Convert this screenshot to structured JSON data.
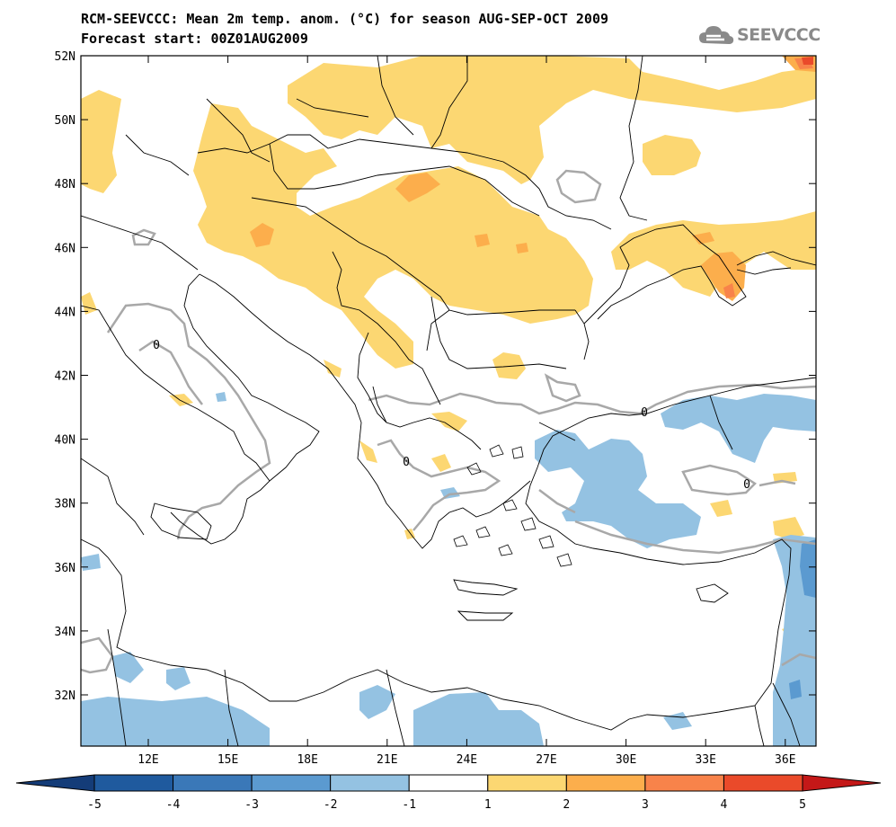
{
  "title_line1": "RCM-SEEVCCC: Mean 2m temp. anom. (°C) for season AUG-SEP-OCT 2009",
  "title_line2": "Forecast start: 00Z01AUG2009",
  "logo_text": "SEEVCCC",
  "lat_labels": [
    "52N",
    "50N",
    "48N",
    "46N",
    "44N",
    "42N",
    "40N",
    "38N",
    "36N",
    "34N",
    "32N"
  ],
  "lon_labels": [
    "12E",
    "15E",
    "18E",
    "21E",
    "24E",
    "27E",
    "30E",
    "33E",
    "36E"
  ],
  "contour_label": "0",
  "colorbar": {
    "labels": [
      "-5",
      "-4",
      "-3",
      "-2",
      "-1",
      "1",
      "2",
      "3",
      "4",
      "5"
    ],
    "colors": [
      "#1f5a9e",
      "#3a78b8",
      "#5b9ad0",
      "#94c2e2",
      "#ffffff",
      "#fcd772",
      "#fcae4c",
      "#f8834a",
      "#ea4a2a"
    ],
    "left_arrow_color": "#143c78",
    "right_arrow_color": "#c41818"
  }
}
